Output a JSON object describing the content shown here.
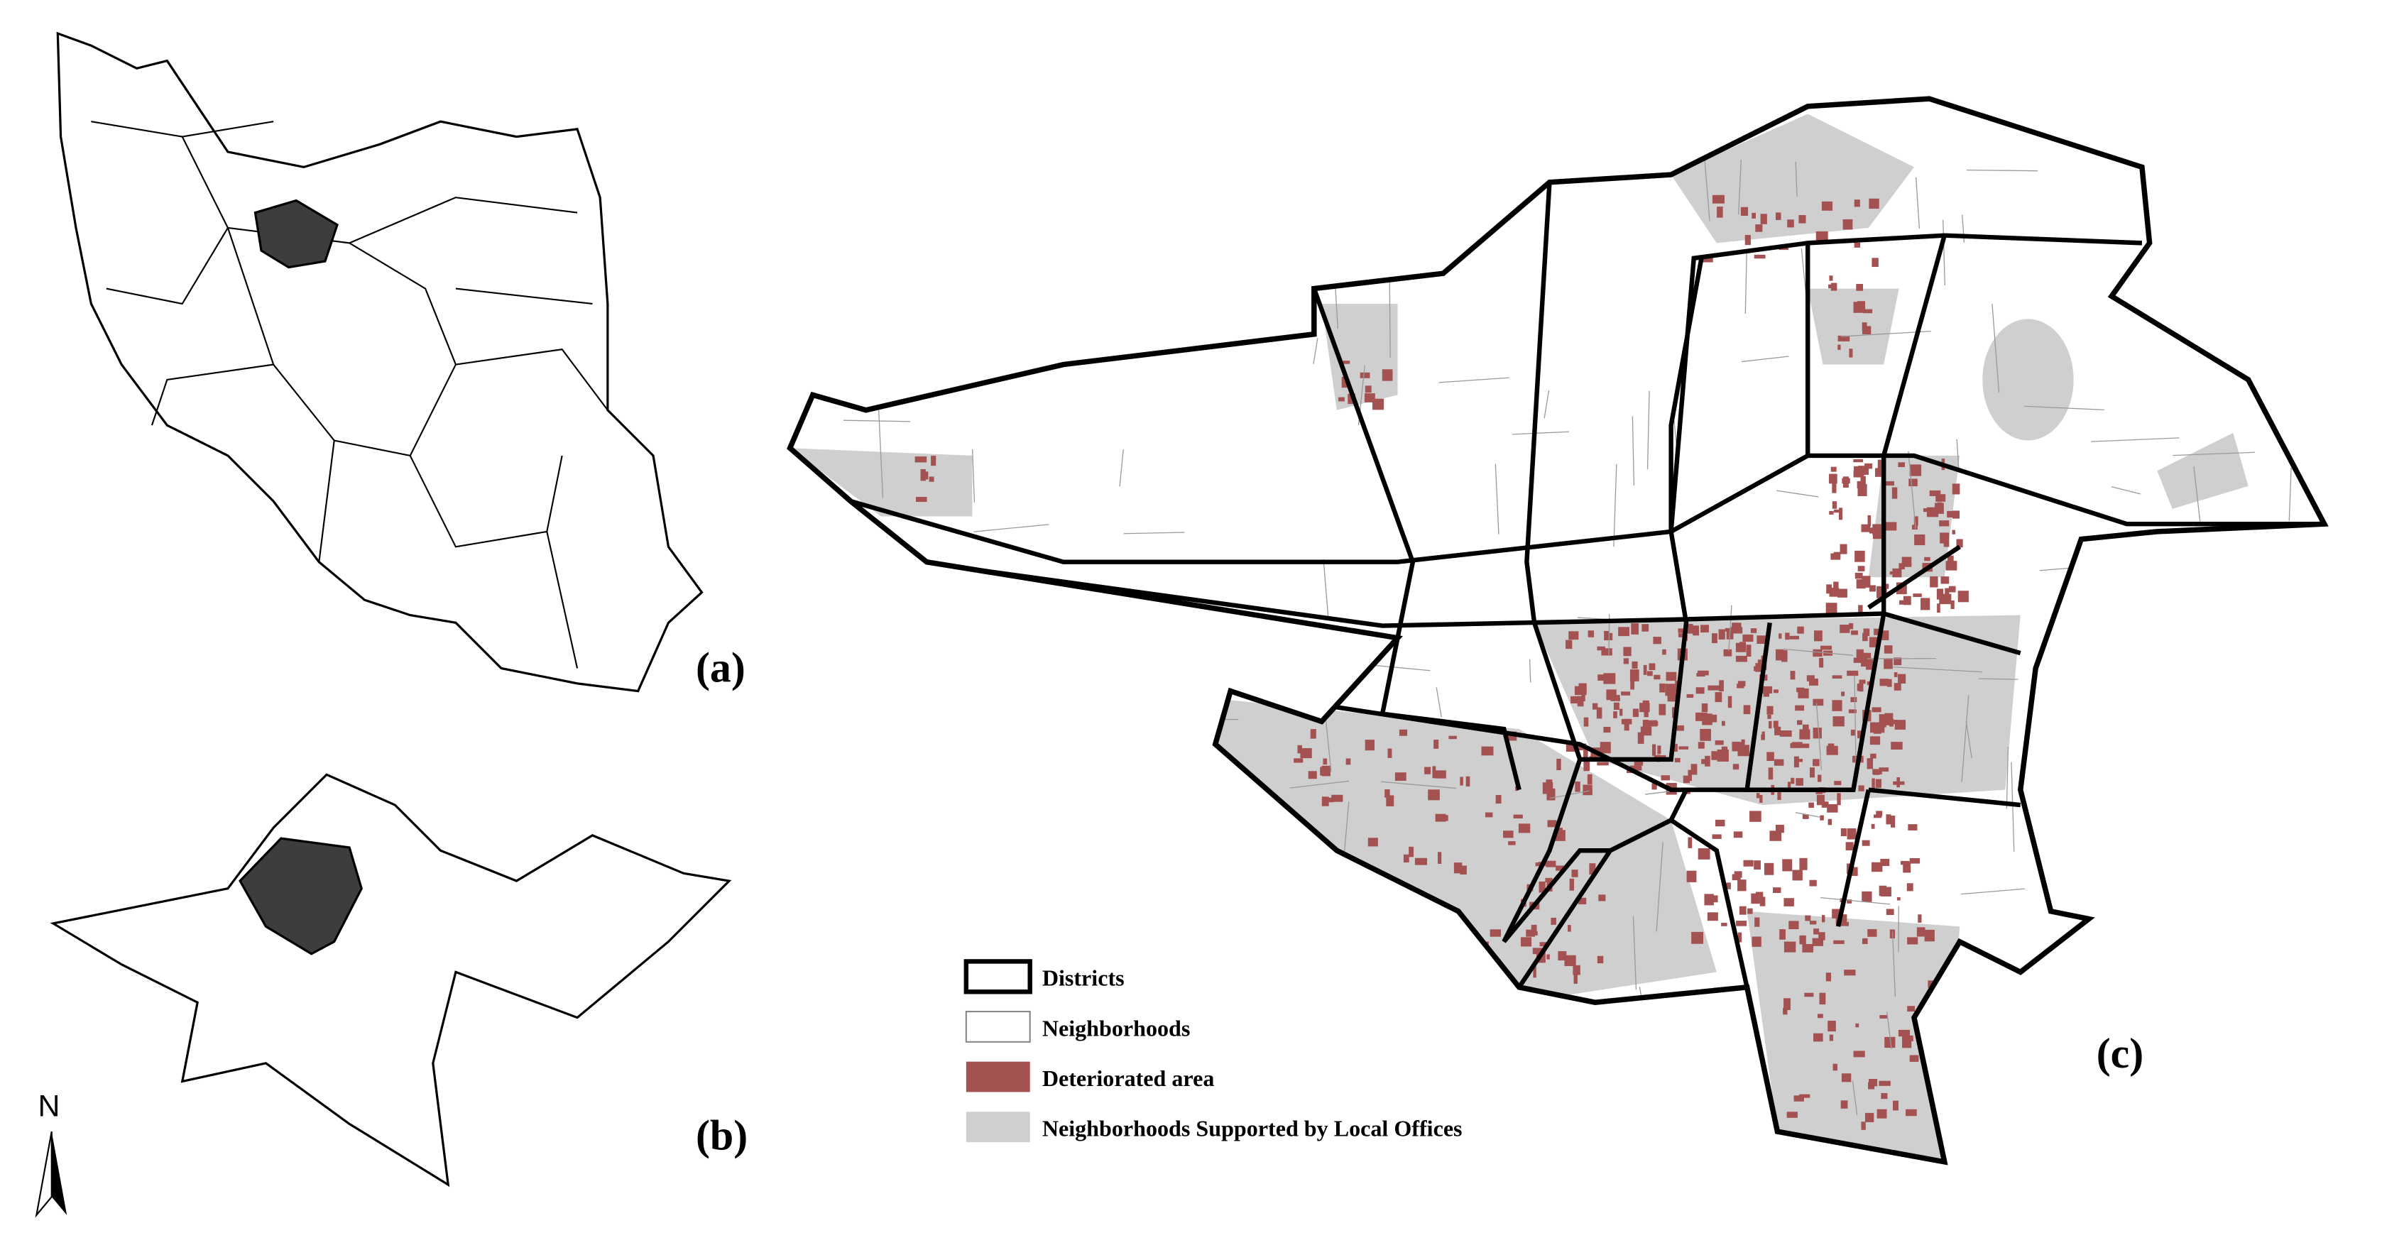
{
  "panels": [
    {
      "label": "(a)"
    },
    {
      "label": "(b)"
    },
    {
      "label": "(c)"
    }
  ],
  "north_arrow": "N",
  "legend": [
    "Districts",
    "Neighborhoods",
    "Deteriorated area",
    "Neighborhoods Supported by Local Offices"
  ]
}
